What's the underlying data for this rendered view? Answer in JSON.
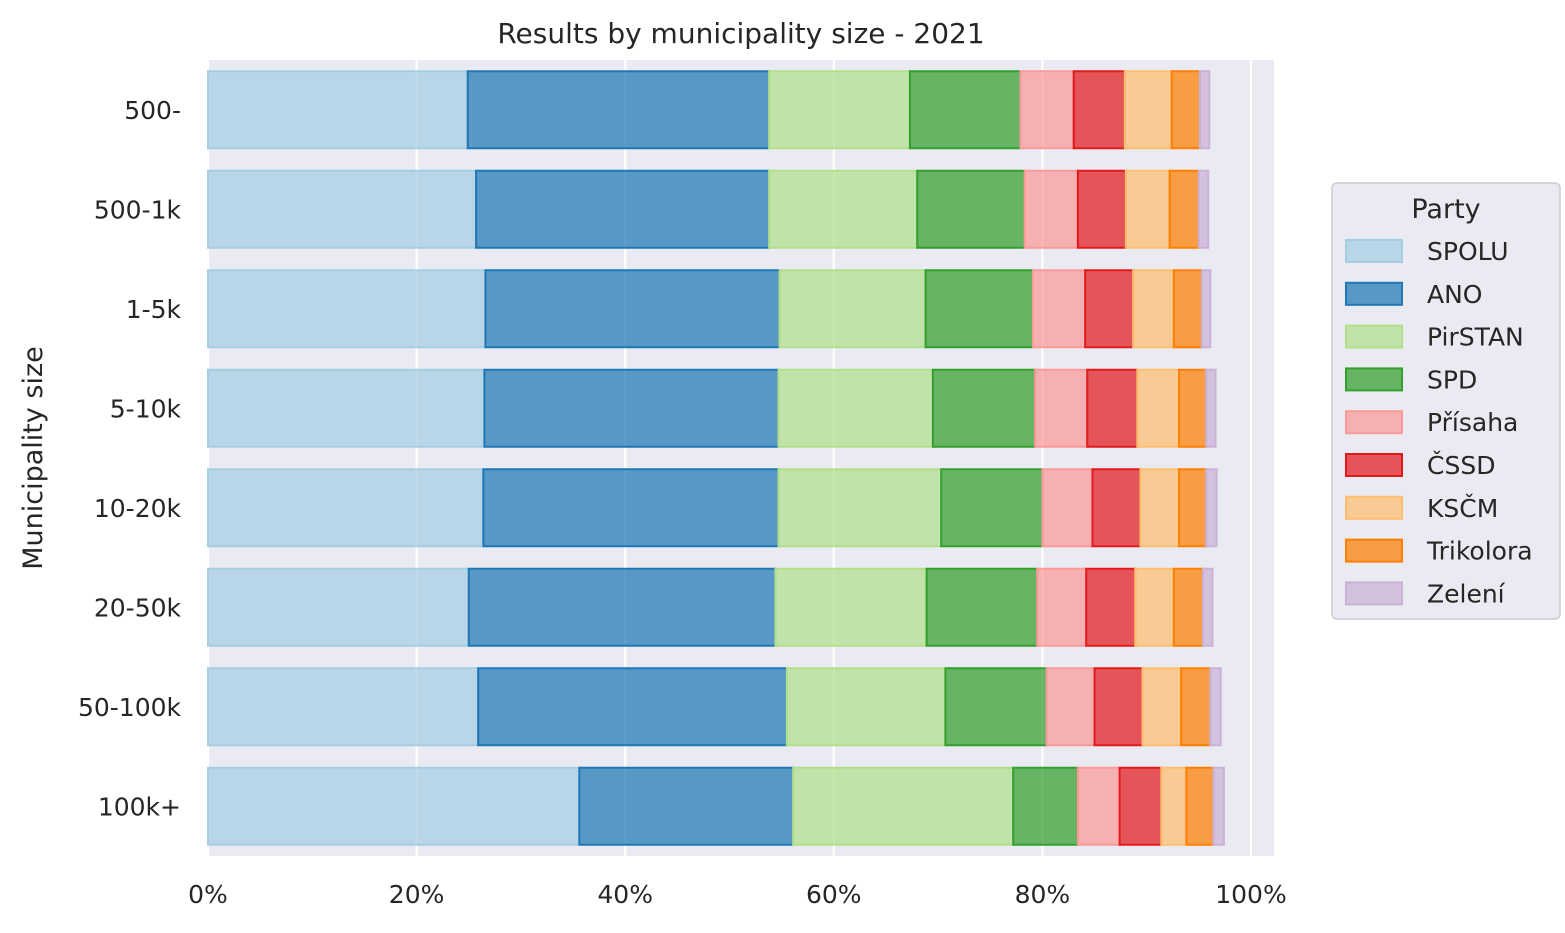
{
  "chart_data": {
    "type": "bar",
    "orientation": "horizontal",
    "stacked": true,
    "title": "Results by municipality size - 2021",
    "xlabel": "",
    "ylabel": "Municipality size",
    "xlim": [
      0,
      102
    ],
    "xticks": [
      0,
      20,
      40,
      60,
      80,
      100
    ],
    "xtick_labels": [
      "0%",
      "20%",
      "40%",
      "60%",
      "80%",
      "100%"
    ],
    "grid": true,
    "legend": {
      "title": "Party",
      "placement": "right"
    },
    "categories": [
      "500-",
      "500-1k",
      "1-5k",
      "5-10k",
      "10-20k",
      "20-50k",
      "50-100k",
      "100k+"
    ],
    "series": [
      {
        "name": "SPOLU",
        "fill": "#a6cee3",
        "stroke": "#a6cee3",
        "values": [
          24.9,
          25.7,
          26.6,
          26.5,
          26.4,
          25.0,
          25.9,
          35.6
        ]
      },
      {
        "name": "ANO",
        "fill": "#1f78b4",
        "stroke": "#1f78b4",
        "values": [
          28.9,
          28.1,
          28.2,
          28.2,
          28.3,
          29.4,
          29.6,
          20.5
        ]
      },
      {
        "name": "PirSTAN",
        "fill": "#b2df8a",
        "stroke": "#b2df8a",
        "values": [
          13.5,
          14.2,
          14.0,
          14.8,
          15.6,
          14.5,
          15.2,
          21.1
        ]
      },
      {
        "name": "SPD",
        "fill": "#33a02c",
        "stroke": "#33a02c",
        "values": [
          10.6,
          10.3,
          10.3,
          9.8,
          9.7,
          10.6,
          9.7,
          6.2
        ]
      },
      {
        "name": "Přísaha",
        "fill": "#fb9a99",
        "stroke": "#fb9a99",
        "values": [
          5.1,
          5.1,
          5.0,
          5.0,
          4.8,
          4.7,
          4.6,
          4.0
        ]
      },
      {
        "name": "ČSSD",
        "fill": "#e31a1c",
        "stroke": "#e31a1c",
        "values": [
          4.9,
          4.6,
          4.6,
          4.8,
          4.6,
          4.7,
          4.6,
          4.0
        ]
      },
      {
        "name": "KSČM",
        "fill": "#fdbf6f",
        "stroke": "#fdbf6f",
        "values": [
          4.5,
          4.2,
          3.9,
          4.0,
          3.7,
          3.7,
          3.7,
          2.4
        ]
      },
      {
        "name": "Trikolora",
        "fill": "#ff7f00",
        "stroke": "#ff7f00",
        "values": [
          2.7,
          2.8,
          2.7,
          2.6,
          2.6,
          2.8,
          2.8,
          2.6
        ]
      },
      {
        "name": "Zelení",
        "fill": "#cab2d6",
        "stroke": "#cab2d6",
        "values": [
          0.9,
          0.9,
          0.8,
          0.9,
          1.0,
          0.9,
          1.0,
          1.0
        ]
      }
    ]
  },
  "colors": {
    "plot_background": "#eaeaf2",
    "grid": "#ffffff",
    "text": "#262626"
  }
}
